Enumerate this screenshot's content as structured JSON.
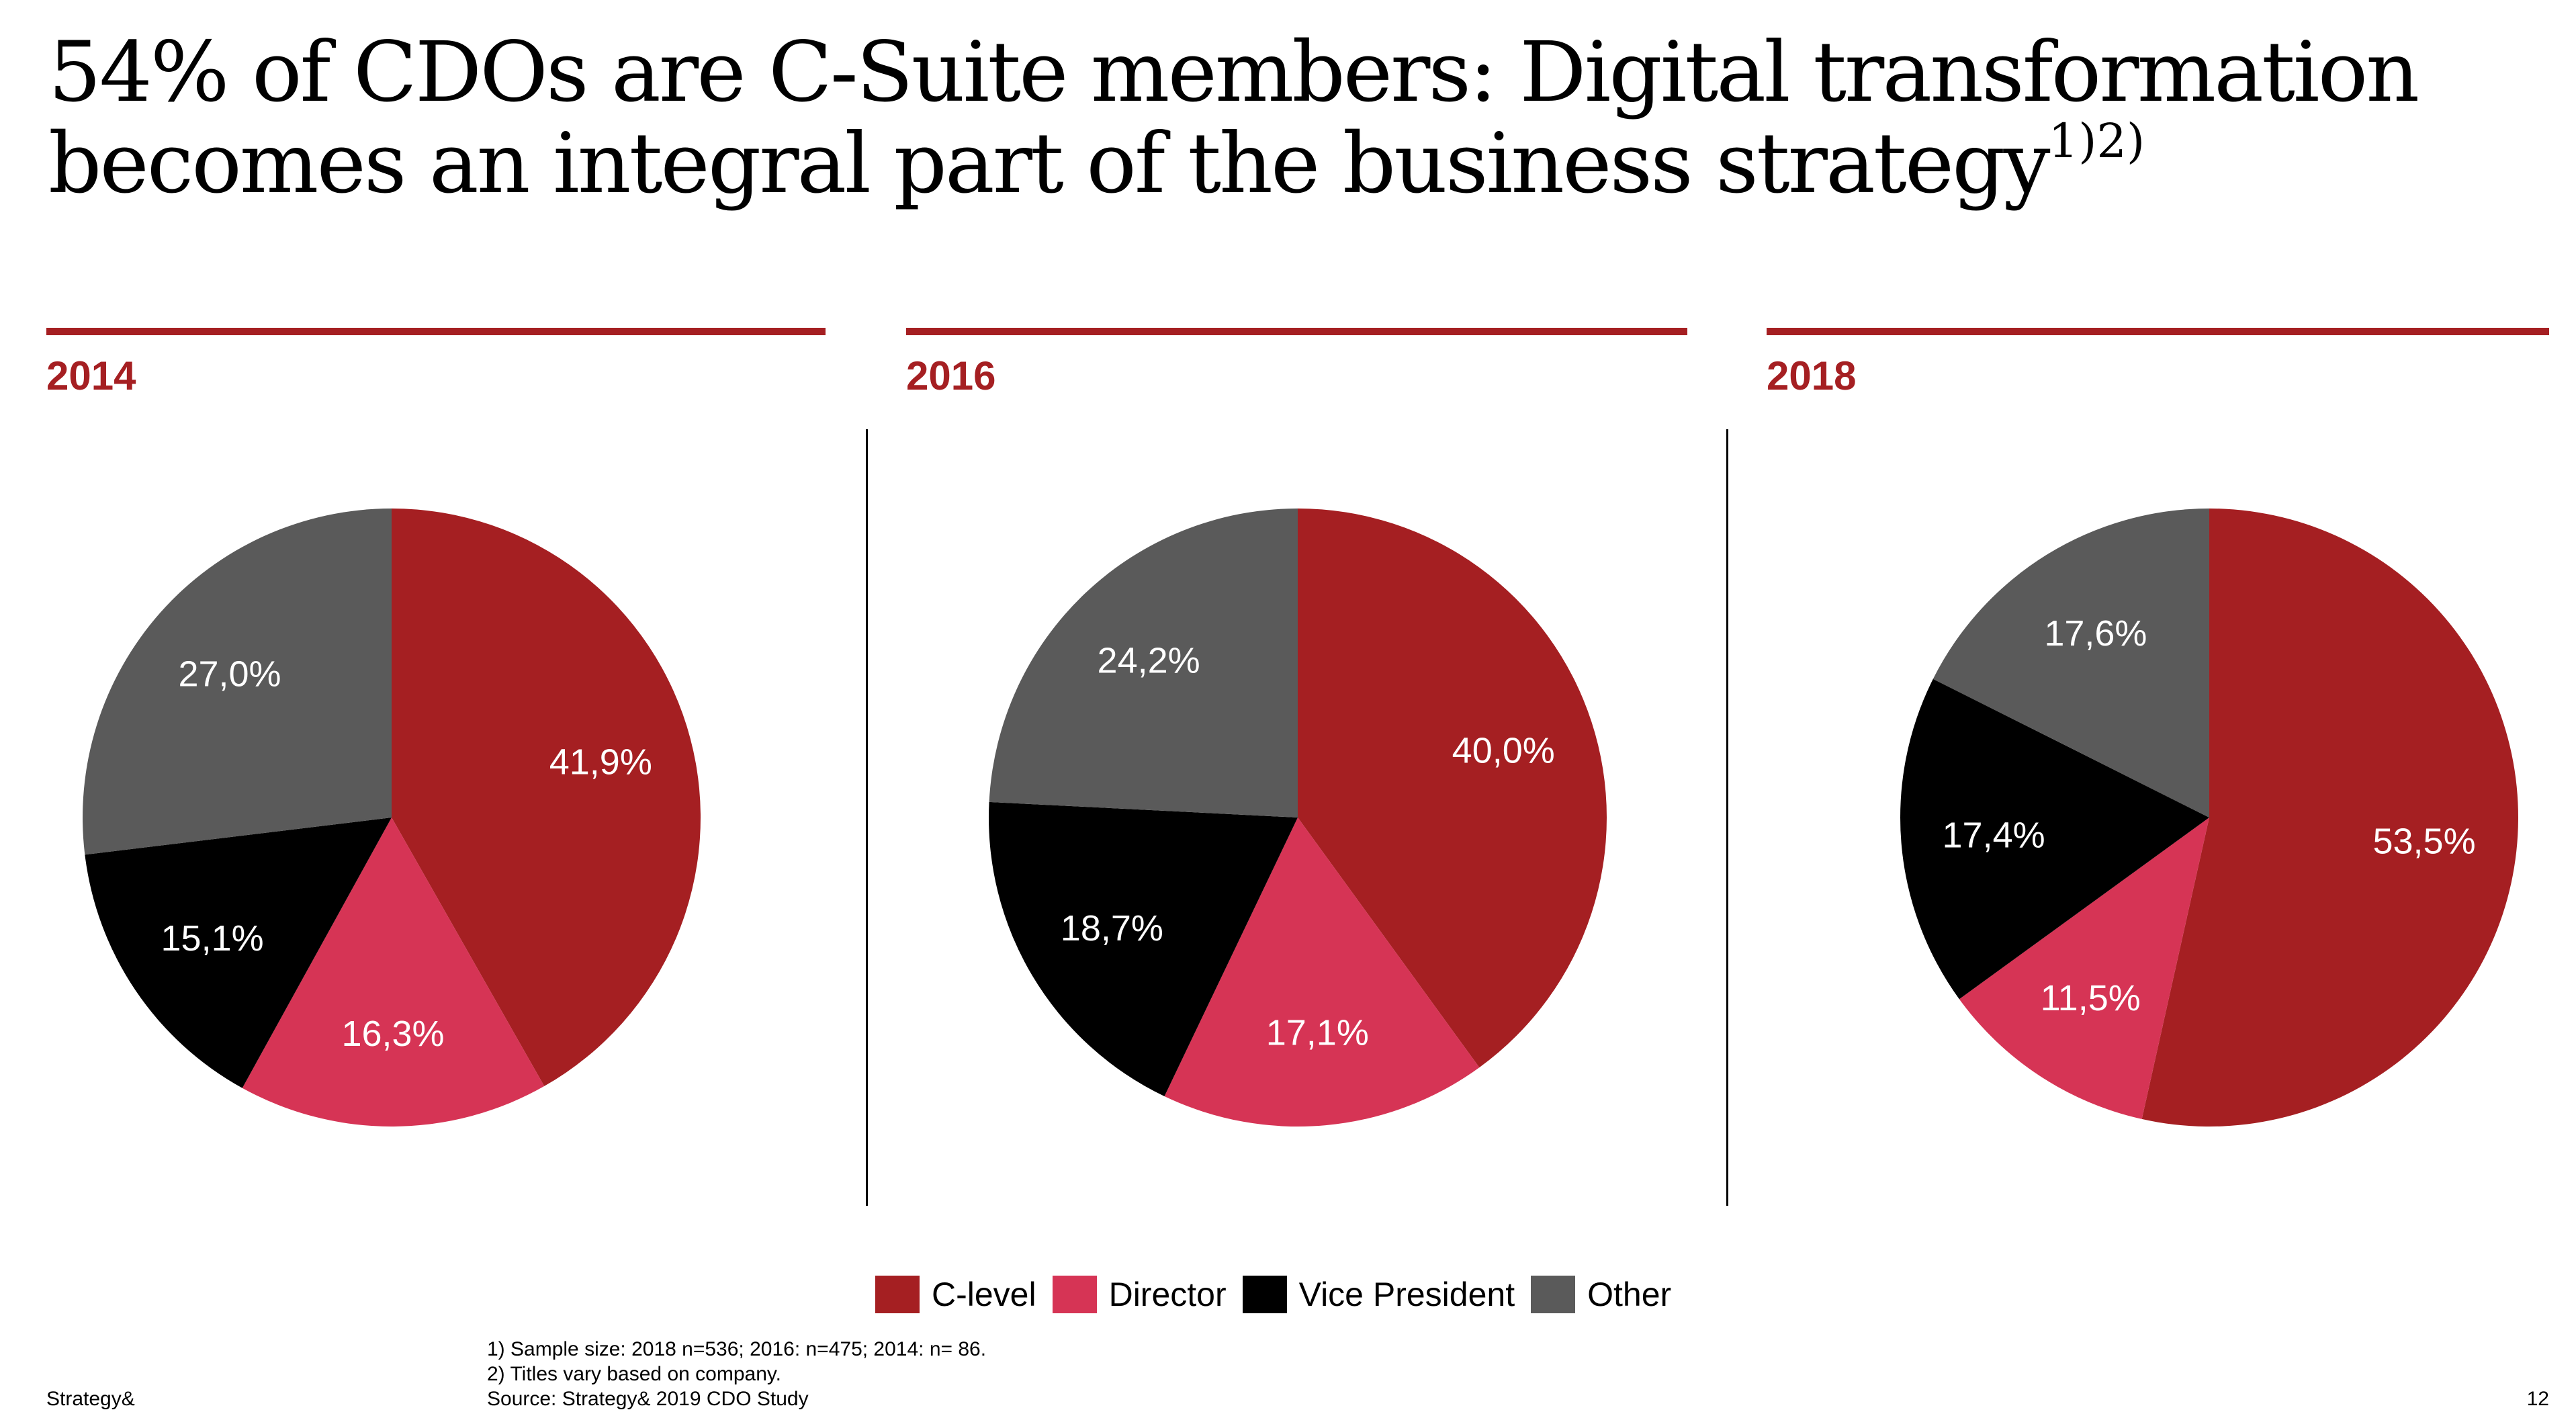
{
  "title": {
    "text": "54% of CDOs are C-Suite members: Digital transformation becomes an integral part of the business strategy",
    "superscript": "1)2)"
  },
  "legend": [
    {
      "label": "C-level",
      "color": "#A51F22"
    },
    {
      "label": "Director",
      "color": "#D63455"
    },
    {
      "label": "Vice President",
      "color": "#000000"
    },
    {
      "label": "Other",
      "color": "#5A5A5A"
    }
  ],
  "chart_data": [
    {
      "type": "pie",
      "title": "2014",
      "categories": [
        "C-level",
        "Director",
        "Vice President",
        "Other"
      ],
      "values": [
        41.9,
        16.3,
        15.1,
        27.0
      ],
      "labels": [
        "41,9%",
        "16,3%",
        "15,1%",
        "27,0%"
      ],
      "start": "12 o'clock, clockwise"
    },
    {
      "type": "pie",
      "title": "2016",
      "categories": [
        "C-level",
        "Director",
        "Vice President",
        "Other"
      ],
      "values": [
        40.0,
        17.1,
        18.7,
        24.2
      ],
      "labels": [
        "40,0%",
        "17,1%",
        "18,7%",
        "24,2%"
      ],
      "start": "12 o'clock, clockwise"
    },
    {
      "type": "pie",
      "title": "2018",
      "categories": [
        "C-level",
        "Director",
        "Vice President",
        "Other"
      ],
      "values": [
        53.5,
        11.5,
        17.4,
        17.6
      ],
      "labels": [
        "53,5%",
        "11,5%",
        "17,4%",
        "17,6%"
      ],
      "start": "12 o'clock, clockwise"
    }
  ],
  "footnotes": {
    "note1": "1) Sample size: 2018 n=536; 2016: n=475; 2014: n= 86.",
    "note2": "2) Titles vary based on company.",
    "source": "Source: Strategy& 2019 CDO Study"
  },
  "footer": {
    "brand": "Strategy&",
    "page": "12"
  }
}
